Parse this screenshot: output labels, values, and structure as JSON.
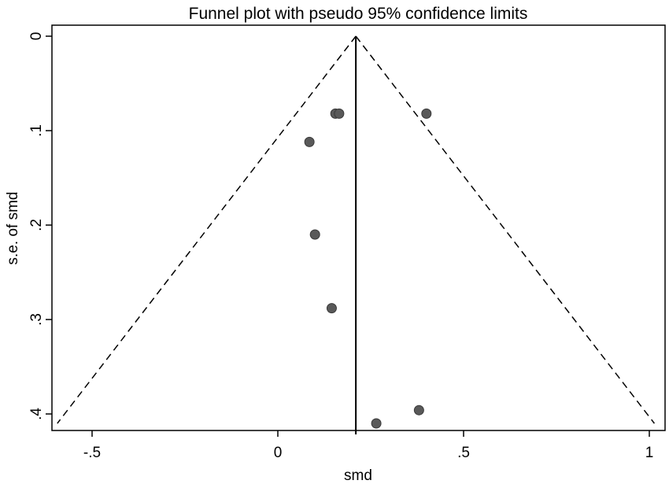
{
  "chart_data": {
    "type": "scatter",
    "title": "Funnel plot with pseudo 95% confidence limits",
    "xlabel": "smd",
    "ylabel": "s.e. of smd",
    "xlim": [
      -0.6,
      1.02
    ],
    "ylim": [
      0,
      0.41
    ],
    "y_reversed": true,
    "grid": false,
    "x_ticks": [
      {
        "value": -0.5,
        "label": "-.5"
      },
      {
        "value": 0,
        "label": "0"
      },
      {
        "value": 0.5,
        "label": ".5"
      },
      {
        "value": 1,
        "label": "1"
      }
    ],
    "y_ticks": [
      {
        "value": 0,
        "label": "0"
      },
      {
        "value": 0.1,
        "label": ".1"
      },
      {
        "value": 0.2,
        "label": ".2"
      },
      {
        "value": 0.3,
        "label": ".3"
      },
      {
        "value": 0.4,
        "label": ".4"
      }
    ],
    "pooled_effect": 0.21,
    "confidence_level": 0.95,
    "max_se": 0.41,
    "points": [
      {
        "x": 0.155,
        "y": 0.082
      },
      {
        "x": 0.165,
        "y": 0.082
      },
      {
        "x": 0.4,
        "y": 0.082
      },
      {
        "x": 0.085,
        "y": 0.112
      },
      {
        "x": 0.1,
        "y": 0.21
      },
      {
        "x": 0.145,
        "y": 0.288
      },
      {
        "x": 0.38,
        "y": 0.396
      },
      {
        "x": 0.265,
        "y": 0.41
      }
    ],
    "colors": {
      "point": "#595959",
      "line": "#000000",
      "frame": "#000000"
    }
  }
}
